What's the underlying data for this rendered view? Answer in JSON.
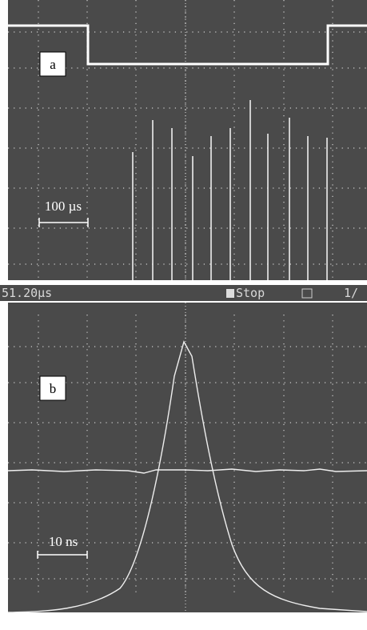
{
  "panel_a": {
    "label": "a",
    "scale": "100 µs"
  },
  "status_bar": {
    "time": "51.20µs",
    "state": "Stop",
    "page": "1/"
  },
  "panel_b": {
    "label": "b",
    "scale": "10 ns"
  }
}
